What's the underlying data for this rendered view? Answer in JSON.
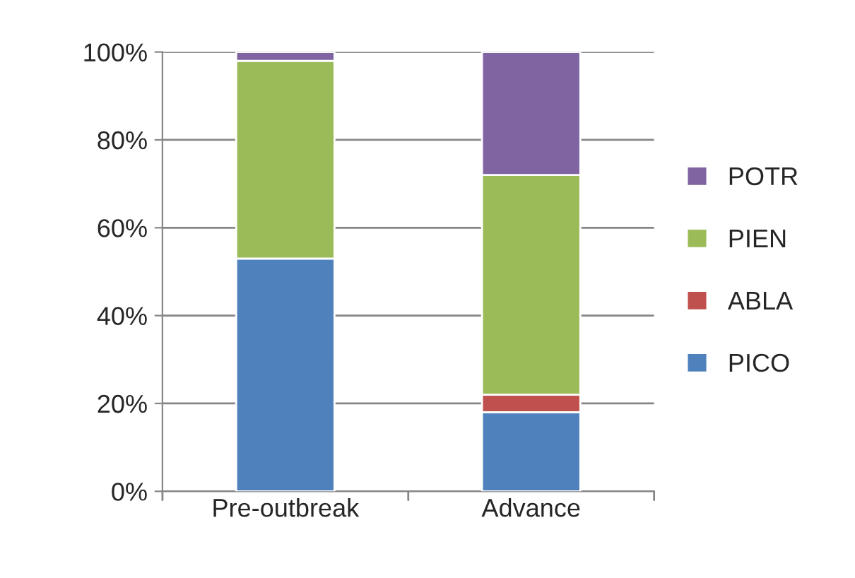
{
  "chart_data": {
    "type": "bar",
    "stacked": true,
    "categories": [
      "Pre-outbreak",
      "Advance"
    ],
    "series": [
      {
        "name": "PICO",
        "color": "#4f81bd",
        "values": [
          53,
          18
        ]
      },
      {
        "name": "ABLA",
        "color": "#c0504d",
        "values": [
          0,
          4
        ]
      },
      {
        "name": "PIEN",
        "color": "#9bbb59",
        "values": [
          45,
          50
        ]
      },
      {
        "name": "POTR",
        "color": "#8064a2",
        "values": [
          2,
          28
        ]
      }
    ],
    "ylim": [
      0,
      100
    ],
    "yticks": [
      {
        "value": 0,
        "label": "0%"
      },
      {
        "value": 20,
        "label": "20%"
      },
      {
        "value": 40,
        "label": "40%"
      },
      {
        "value": 60,
        "label": "60%"
      },
      {
        "value": 80,
        "label": "80%"
      },
      {
        "value": 100,
        "label": "100%"
      }
    ],
    "grid": "y",
    "legend": "right"
  }
}
